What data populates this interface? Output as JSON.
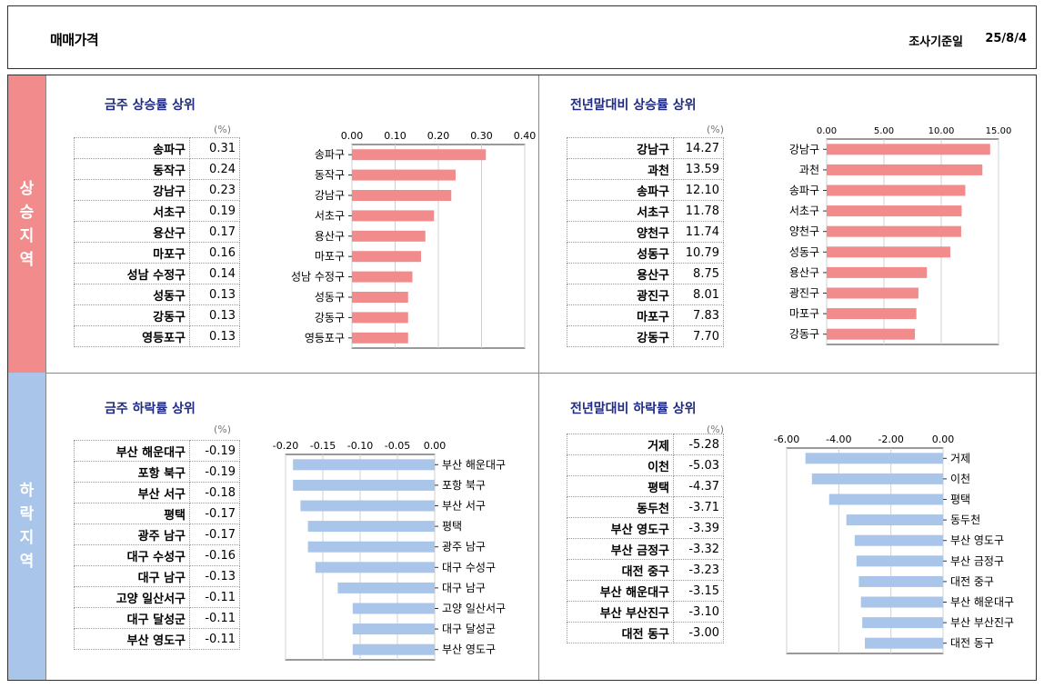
{
  "header": {
    "title": "매매가격",
    "date_label": "조사기준일",
    "date": "25/8/4"
  },
  "bands": {
    "rise": "상승지역",
    "fall": "하락지역"
  },
  "colors": {
    "rise": "#f28b8b",
    "fall": "#a9c5ea",
    "title": "#1f2a80"
  },
  "quadrants": [
    {
      "title": "금주 상승률 상위",
      "unit": "(%)",
      "rows": [
        {
          "name": "송파구",
          "value": "0.31"
        },
        {
          "name": "동작구",
          "value": "0.24"
        },
        {
          "name": "강남구",
          "value": "0.23"
        },
        {
          "name": "서초구",
          "value": "0.19"
        },
        {
          "name": "용산구",
          "value": "0.17"
        },
        {
          "name": "마포구",
          "value": "0.16"
        },
        {
          "name": "성남 수정구",
          "value": "0.14"
        },
        {
          "name": "성동구",
          "value": "0.13"
        },
        {
          "name": "강동구",
          "value": "0.13"
        },
        {
          "name": "영등포구",
          "value": "0.13"
        }
      ]
    },
    {
      "title": "전년말대비 상승률 상위",
      "unit": "(%)",
      "rows": [
        {
          "name": "강남구",
          "value": "14.27"
        },
        {
          "name": "과천",
          "value": "13.59"
        },
        {
          "name": "송파구",
          "value": "12.10"
        },
        {
          "name": "서초구",
          "value": "11.78"
        },
        {
          "name": "양천구",
          "value": "11.74"
        },
        {
          "name": "성동구",
          "value": "10.79"
        },
        {
          "name": "용산구",
          "value": "8.75"
        },
        {
          "name": "광진구",
          "value": "8.01"
        },
        {
          "name": "마포구",
          "value": "7.83"
        },
        {
          "name": "강동구",
          "value": "7.70"
        }
      ]
    },
    {
      "title": "금주 하락률 상위",
      "unit": "(%)",
      "rows": [
        {
          "name": "부산 해운대구",
          "value": "-0.19"
        },
        {
          "name": "포항 북구",
          "value": "-0.19"
        },
        {
          "name": "부산 서구",
          "value": "-0.18"
        },
        {
          "name": "평택",
          "value": "-0.17"
        },
        {
          "name": "광주 남구",
          "value": "-0.17"
        },
        {
          "name": "대구 수성구",
          "value": "-0.16"
        },
        {
          "name": "대구 남구",
          "value": "-0.13"
        },
        {
          "name": "고양 일산서구",
          "value": "-0.11"
        },
        {
          "name": "대구 달성군",
          "value": "-0.11"
        },
        {
          "name": "부산 영도구",
          "value": "-0.11"
        }
      ]
    },
    {
      "title": "전년말대비 하락률 상위",
      "unit": "(%)",
      "rows": [
        {
          "name": "거제",
          "value": "-5.28"
        },
        {
          "name": "이천",
          "value": "-5.03"
        },
        {
          "name": "평택",
          "value": "-4.37"
        },
        {
          "name": "동두천",
          "value": "-3.71"
        },
        {
          "name": "부산 영도구",
          "value": "-3.39"
        },
        {
          "name": "부산 금정구",
          "value": "-3.32"
        },
        {
          "name": "대전 중구",
          "value": "-3.23"
        },
        {
          "name": "부산 해운대구",
          "value": "-3.15"
        },
        {
          "name": "부산 부산진구",
          "value": "-3.10"
        },
        {
          "name": "대전 동구",
          "value": "-3.00"
        }
      ]
    }
  ],
  "chart_data": [
    {
      "type": "bar",
      "orientation": "horizontal",
      "categories": [
        "송파구",
        "동작구",
        "강남구",
        "서초구",
        "용산구",
        "마포구",
        "성남 수정구",
        "성동구",
        "강동구",
        "영등포구"
      ],
      "values": [
        0.31,
        0.24,
        0.23,
        0.19,
        0.17,
        0.16,
        0.14,
        0.13,
        0.13,
        0.13
      ],
      "xlim": [
        0,
        0.4
      ],
      "ticks": [
        "0.00",
        "0.10",
        "0.20",
        "0.30",
        "0.40"
      ],
      "tick_values": [
        0,
        0.1,
        0.2,
        0.3,
        0.4
      ],
      "color": "#f28b8b",
      "label_side": "left",
      "axis_position": "top"
    },
    {
      "type": "bar",
      "orientation": "horizontal",
      "categories": [
        "강남구",
        "과천",
        "송파구",
        "서초구",
        "양천구",
        "성동구",
        "용산구",
        "광진구",
        "마포구",
        "강동구"
      ],
      "values": [
        14.27,
        13.59,
        12.1,
        11.78,
        11.74,
        10.79,
        8.75,
        8.01,
        7.83,
        7.7
      ],
      "xlim": [
        0,
        15
      ],
      "ticks": [
        "0.00",
        "5.00",
        "10.00",
        "15.00"
      ],
      "tick_values": [
        0,
        5,
        10,
        15
      ],
      "color": "#f28b8b",
      "label_side": "left",
      "axis_position": "top"
    },
    {
      "type": "bar",
      "orientation": "horizontal",
      "categories": [
        "부산 해운대구",
        "포항 북구",
        "부산 서구",
        "평택",
        "광주 남구",
        "대구 수성구",
        "대구 남구",
        "고양 일산서구",
        "대구 달성군",
        "부산 영도구"
      ],
      "values": [
        -0.19,
        -0.19,
        -0.18,
        -0.17,
        -0.17,
        -0.16,
        -0.13,
        -0.11,
        -0.11,
        -0.11
      ],
      "xlim": [
        -0.2,
        0
      ],
      "ticks": [
        "-0.20",
        "-0.15",
        "-0.10",
        "-0.05",
        "0.00"
      ],
      "tick_values": [
        -0.2,
        -0.15,
        -0.1,
        -0.05,
        0
      ],
      "color": "#a9c5ea",
      "label_side": "right",
      "axis_position": "top"
    },
    {
      "type": "bar",
      "orientation": "horizontal",
      "categories": [
        "거제",
        "이천",
        "평택",
        "동두천",
        "부산 영도구",
        "부산 금정구",
        "대전 중구",
        "부산 해운대구",
        "부산 부산진구",
        "대전 동구"
      ],
      "values": [
        -5.28,
        -5.03,
        -4.37,
        -3.71,
        -3.39,
        -3.32,
        -3.23,
        -3.15,
        -3.1,
        -3.0
      ],
      "xlim": [
        -6,
        0
      ],
      "ticks": [
        "-6.00",
        "-4.00",
        "-2.00",
        "0.00"
      ],
      "tick_values": [
        -6,
        -4,
        -2,
        0
      ],
      "color": "#a9c5ea",
      "label_side": "right",
      "axis_position": "top"
    }
  ]
}
